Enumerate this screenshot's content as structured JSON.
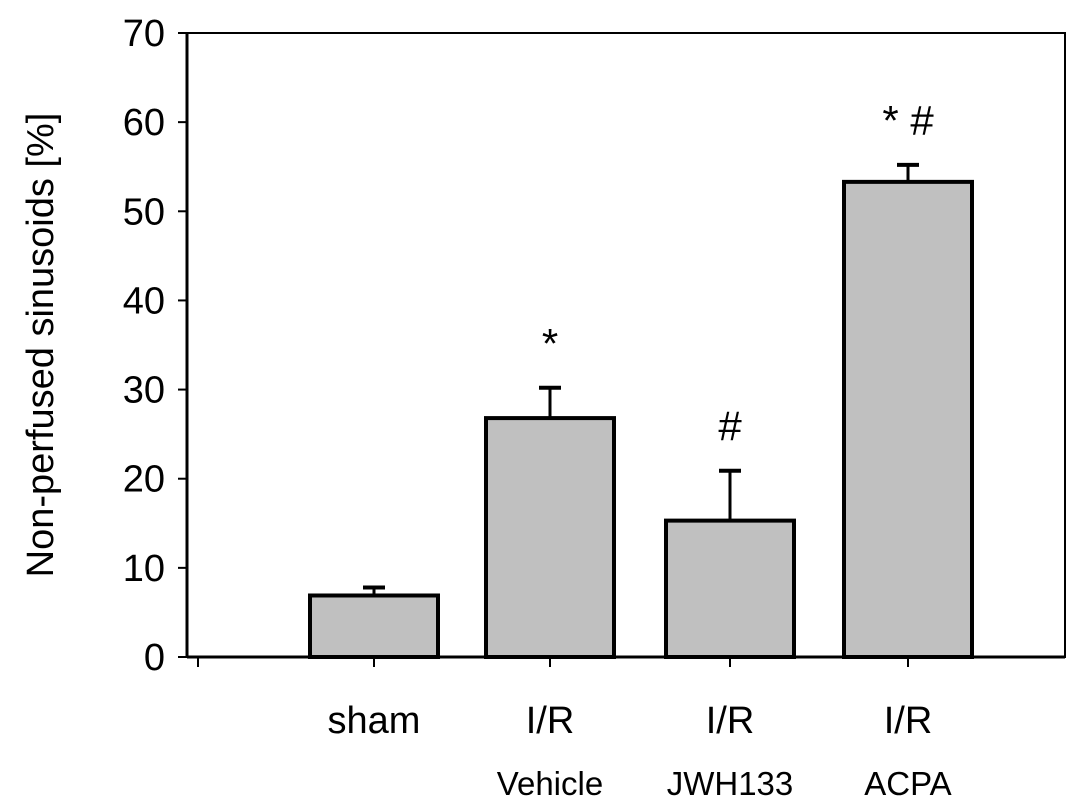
{
  "chart_data": {
    "type": "bar",
    "ylabel": "Non-perfused sinusoids [%]",
    "xlabel": "",
    "ylim": [
      0,
      70
    ],
    "yticks": [
      0,
      10,
      20,
      30,
      40,
      50,
      60,
      70
    ],
    "grid": false,
    "legend": "none",
    "bar_color": "#c0c0c0",
    "edge_color": "#000000",
    "categories": [
      "sham",
      "I/R",
      "I/R",
      "I/R"
    ],
    "subcategories": [
      "",
      "Vehicle",
      "JWH133",
      "ACPA"
    ],
    "values": [
      6.9,
      26.8,
      15.3,
      53.3
    ],
    "errors": [
      0.9,
      3.4,
      5.6,
      1.9
    ],
    "annotations": [
      "",
      "*",
      "#",
      "* #"
    ]
  }
}
